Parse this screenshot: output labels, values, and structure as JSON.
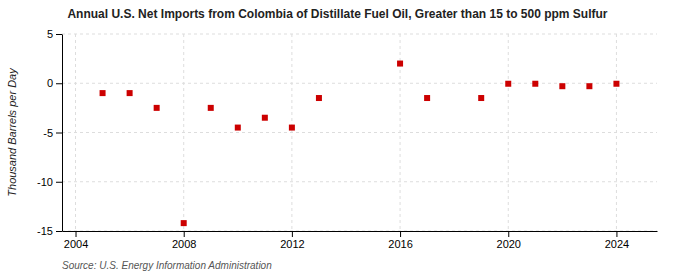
{
  "chart_data": {
    "type": "scatter",
    "title": "Annual U.S. Net Imports from Colombia of Distillate Fuel Oil, Greater than 15 to 500 ppm Sulfur",
    "ylabel": "Thousand Barrels per Day",
    "source": "Source: U.S. Energy Information Administration",
    "x": [
      2005,
      2006,
      2007,
      2008,
      2009,
      2010,
      2011,
      2012,
      2013,
      2016,
      2017,
      2019,
      2020,
      2021,
      2022,
      2023,
      2024
    ],
    "values": [
      -1.0,
      -1.0,
      -2.5,
      -14.2,
      -2.5,
      -4.5,
      -3.5,
      -4.5,
      -1.5,
      2.0,
      -1.5,
      -1.5,
      -0.05,
      -0.05,
      -0.3,
      -0.3,
      -0.05
    ],
    "color": "#cc0000",
    "marker": "square",
    "xlim": [
      2003.5,
      2025.5
    ],
    "ylim": [
      -15,
      5
    ],
    "xticks": [
      2004,
      2008,
      2012,
      2016,
      2020,
      2024
    ],
    "yticks": [
      -15,
      -10,
      -5,
      0,
      5
    ],
    "grid": true
  }
}
